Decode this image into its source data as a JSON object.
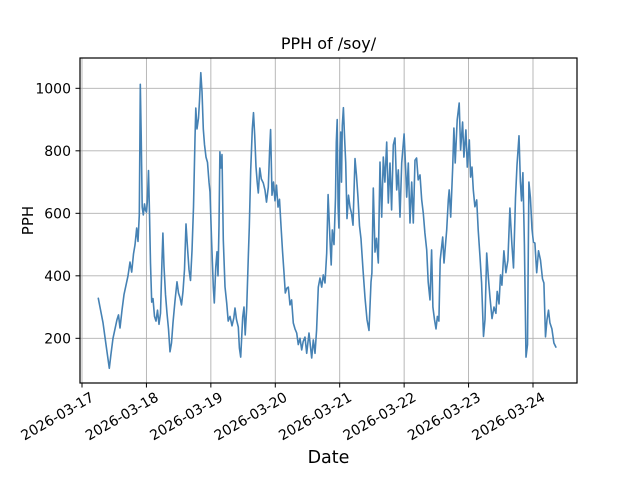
{
  "chart_data": {
    "type": "line",
    "title": "PPH of /soy/",
    "xlabel": "Date",
    "ylabel": "PPH",
    "x_tick_labels": [
      "2026-03-17",
      "2026-03-18",
      "2026-03-19",
      "2026-03-20",
      "2026-03-21",
      "2026-03-22",
      "2026-03-23",
      "2026-03-24"
    ],
    "y_tick_labels": [
      200,
      400,
      600,
      800,
      1000
    ],
    "ylim": [
      57,
      1097
    ],
    "xlim_days": [
      -0.031,
      7.683
    ],
    "x_unit": "days since 2026-03-17 00:00",
    "grid": true,
    "legend": "none",
    "line_color": "#4682b4",
    "grid_color": "#b0b0b0",
    "points": [
      [
        0.253,
        328
      ],
      [
        0.279,
        300
      ],
      [
        0.326,
        250
      ],
      [
        0.372,
        180
      ],
      [
        0.424,
        104
      ],
      [
        0.45,
        150
      ],
      [
        0.481,
        200
      ],
      [
        0.512,
        230
      ],
      [
        0.543,
        260
      ],
      [
        0.566,
        275
      ],
      [
        0.59,
        233
      ],
      [
        0.621,
        290
      ],
      [
        0.652,
        340
      ],
      [
        0.683,
        370
      ],
      [
        0.714,
        400
      ],
      [
        0.745,
        444
      ],
      [
        0.771,
        412
      ],
      [
        0.799,
        470
      ],
      [
        0.823,
        499
      ],
      [
        0.849,
        553
      ],
      [
        0.869,
        510
      ],
      [
        0.889,
        595
      ],
      [
        0.897,
        800
      ],
      [
        0.905,
        1013
      ],
      [
        0.919,
        850
      ],
      [
        0.934,
        620
      ],
      [
        0.951,
        595
      ],
      [
        0.97,
        630
      ],
      [
        0.986,
        610
      ],
      [
        1.001,
        604
      ],
      [
        1.014,
        636
      ],
      [
        1.032,
        737
      ],
      [
        1.048,
        600
      ],
      [
        1.063,
        440
      ],
      [
        1.082,
        316
      ],
      [
        1.102,
        327
      ],
      [
        1.125,
        270
      ],
      [
        1.148,
        255
      ],
      [
        1.172,
        290
      ],
      [
        1.195,
        245
      ],
      [
        1.218,
        280
      ],
      [
        1.242,
        450
      ],
      [
        1.256,
        537
      ],
      [
        1.273,
        430
      ],
      [
        1.296,
        340
      ],
      [
        1.319,
        280
      ],
      [
        1.342,
        230
      ],
      [
        1.366,
        157
      ],
      [
        1.389,
        185
      ],
      [
        1.412,
        250
      ],
      [
        1.443,
        320
      ],
      [
        1.474,
        381
      ],
      [
        1.498,
        345
      ],
      [
        1.521,
        330
      ],
      [
        1.544,
        307
      ],
      [
        1.567,
        350
      ],
      [
        1.591,
        420
      ],
      [
        1.614,
        566
      ],
      [
        1.637,
        490
      ],
      [
        1.661,
        420
      ],
      [
        1.684,
        385
      ],
      [
        1.707,
        480
      ],
      [
        1.731,
        620
      ],
      [
        1.754,
        840
      ],
      [
        1.766,
        937
      ],
      [
        1.785,
        870
      ],
      [
        1.808,
        905
      ],
      [
        1.824,
        960
      ],
      [
        1.844,
        1050
      ],
      [
        1.862,
        990
      ],
      [
        1.883,
        870
      ],
      [
        1.901,
        820
      ],
      [
        1.925,
        780
      ],
      [
        1.948,
        763
      ],
      [
        1.971,
        700
      ],
      [
        1.987,
        668
      ],
      [
        2.01,
        520
      ],
      [
        2.038,
        365
      ],
      [
        2.054,
        313
      ],
      [
        2.077,
        430
      ],
      [
        2.095,
        477
      ],
      [
        2.111,
        400
      ],
      [
        2.126,
        560
      ],
      [
        2.14,
        797
      ],
      [
        2.157,
        745
      ],
      [
        2.173,
        788
      ],
      [
        2.193,
        515
      ],
      [
        2.219,
        365
      ],
      [
        2.246,
        313
      ],
      [
        2.269,
        255
      ],
      [
        2.297,
        270
      ],
      [
        2.328,
        240
      ],
      [
        2.356,
        265
      ],
      [
        2.374,
        297
      ],
      [
        2.398,
        260
      ],
      [
        2.426,
        236
      ],
      [
        2.443,
        169
      ],
      [
        2.463,
        140
      ],
      [
        2.494,
        268
      ],
      [
        2.514,
        300
      ],
      [
        2.533,
        211
      ],
      [
        2.556,
        297
      ],
      [
        2.581,
        460
      ],
      [
        2.597,
        556
      ],
      [
        2.618,
        738
      ],
      [
        2.643,
        870
      ],
      [
        2.662,
        922
      ],
      [
        2.68,
        850
      ],
      [
        2.701,
        749
      ],
      [
        2.719,
        700
      ],
      [
        2.736,
        665
      ],
      [
        2.76,
        745
      ],
      [
        2.783,
        710
      ],
      [
        2.814,
        697
      ],
      [
        2.84,
        674
      ],
      [
        2.863,
        636
      ],
      [
        2.891,
        684
      ],
      [
        2.912,
        800
      ],
      [
        2.928,
        868
      ],
      [
        2.949,
        658
      ],
      [
        2.972,
        700
      ],
      [
        2.995,
        640
      ],
      [
        3.019,
        690
      ],
      [
        3.042,
        620
      ],
      [
        3.065,
        645
      ],
      [
        3.088,
        560
      ],
      [
        3.112,
        480
      ],
      [
        3.135,
        410
      ],
      [
        3.155,
        345
      ],
      [
        3.178,
        360
      ],
      [
        3.202,
        364
      ],
      [
        3.228,
        307
      ],
      [
        3.254,
        323
      ],
      [
        3.279,
        249
      ],
      [
        3.306,
        230
      ],
      [
        3.332,
        217
      ],
      [
        3.357,
        180
      ],
      [
        3.383,
        200
      ],
      [
        3.41,
        163
      ],
      [
        3.434,
        190
      ],
      [
        3.461,
        204
      ],
      [
        3.487,
        152
      ],
      [
        3.523,
        217
      ],
      [
        3.565,
        137
      ],
      [
        3.59,
        195
      ],
      [
        3.616,
        152
      ],
      [
        3.642,
        227
      ],
      [
        3.668,
        364
      ],
      [
        3.694,
        393
      ],
      [
        3.72,
        364
      ],
      [
        3.745,
        403
      ],
      [
        3.772,
        377
      ],
      [
        3.798,
        473
      ],
      [
        3.82,
        660
      ],
      [
        3.849,
        515
      ],
      [
        3.868,
        435
      ],
      [
        3.885,
        547
      ],
      [
        3.911,
        500
      ],
      [
        3.934,
        650
      ],
      [
        3.947,
        827
      ],
      [
        3.961,
        900
      ],
      [
        3.975,
        620
      ],
      [
        3.987,
        553
      ],
      [
        4.003,
        800
      ],
      [
        4.015,
        860
      ],
      [
        4.028,
        700
      ],
      [
        4.04,
        880
      ],
      [
        4.057,
        938
      ],
      [
        4.076,
        840
      ],
      [
        4.093,
        763
      ],
      [
        4.113,
        583
      ],
      [
        4.136,
        658
      ],
      [
        4.16,
        620
      ],
      [
        4.183,
        600
      ],
      [
        4.206,
        562
      ],
      [
        4.237,
        775
      ],
      [
        4.26,
        720
      ],
      [
        4.284,
        650
      ],
      [
        4.307,
        560
      ],
      [
        4.33,
        518
      ],
      [
        4.361,
        420
      ],
      [
        4.392,
        330
      ],
      [
        4.423,
        260
      ],
      [
        4.454,
        225
      ],
      [
        4.485,
        380
      ],
      [
        4.499,
        409
      ],
      [
        4.521,
        681
      ],
      [
        4.547,
        476
      ],
      [
        4.571,
        520
      ],
      [
        4.599,
        441
      ],
      [
        4.625,
        764
      ],
      [
        4.651,
        588
      ],
      [
        4.676,
        780
      ],
      [
        4.702,
        700
      ],
      [
        4.729,
        828
      ],
      [
        4.754,
        633
      ],
      [
        4.78,
        761
      ],
      [
        4.806,
        611
      ],
      [
        4.831,
        819
      ],
      [
        4.858,
        841
      ],
      [
        4.884,
        675
      ],
      [
        4.909,
        739
      ],
      [
        4.935,
        588
      ],
      [
        4.962,
        761
      ],
      [
        4.999,
        854
      ],
      [
        5.024,
        739
      ],
      [
        5.039,
        652
      ],
      [
        5.064,
        761
      ],
      [
        5.091,
        569
      ],
      [
        5.117,
        700
      ],
      [
        5.142,
        569
      ],
      [
        5.168,
        770
      ],
      [
        5.194,
        777
      ],
      [
        5.219,
        707
      ],
      [
        5.246,
        723
      ],
      [
        5.272,
        643
      ],
      [
        5.297,
        600
      ],
      [
        5.323,
        537
      ],
      [
        5.35,
        483
      ],
      [
        5.374,
        380
      ],
      [
        5.401,
        323
      ],
      [
        5.427,
        483
      ],
      [
        5.447,
        300
      ],
      [
        5.471,
        260
      ],
      [
        5.494,
        230
      ],
      [
        5.517,
        270
      ],
      [
        5.54,
        255
      ],
      [
        5.559,
        451
      ],
      [
        5.598,
        524
      ],
      [
        5.618,
        441
      ],
      [
        5.66,
        547
      ],
      [
        5.685,
        643
      ],
      [
        5.7,
        675
      ],
      [
        5.722,
        588
      ],
      [
        5.753,
        748
      ],
      [
        5.773,
        873
      ],
      [
        5.793,
        761
      ],
      [
        5.824,
        899
      ],
      [
        5.855,
        953
      ],
      [
        5.877,
        803
      ],
      [
        5.908,
        892
      ],
      [
        5.928,
        780
      ],
      [
        5.959,
        867
      ],
      [
        5.98,
        748
      ],
      [
        6.011,
        835
      ],
      [
        6.032,
        716
      ],
      [
        6.053,
        748
      ],
      [
        6.073,
        675
      ],
      [
        6.099,
        621
      ],
      [
        6.126,
        643
      ],
      [
        6.15,
        547
      ],
      [
        6.177,
        461
      ],
      [
        6.203,
        377
      ],
      [
        6.231,
        206
      ],
      [
        6.255,
        260
      ],
      [
        6.281,
        473
      ],
      [
        6.306,
        397
      ],
      [
        6.332,
        330
      ],
      [
        6.363,
        263
      ],
      [
        6.394,
        300
      ],
      [
        6.425,
        280
      ],
      [
        6.445,
        350
      ],
      [
        6.472,
        310
      ],
      [
        6.495,
        403
      ],
      [
        6.518,
        370
      ],
      [
        6.549,
        480
      ],
      [
        6.58,
        410
      ],
      [
        6.611,
        450
      ],
      [
        6.642,
        617
      ],
      [
        6.673,
        500
      ],
      [
        6.697,
        425
      ],
      [
        6.728,
        650
      ],
      [
        6.751,
        754
      ],
      [
        6.782,
        848
      ],
      [
        6.805,
        700
      ],
      [
        6.821,
        640
      ],
      [
        6.844,
        730
      ],
      [
        6.867,
        500
      ],
      [
        6.891,
        140
      ],
      [
        6.914,
        180
      ],
      [
        6.937,
        700
      ],
      [
        6.96,
        650
      ],
      [
        6.984,
        550
      ],
      [
        7.007,
        508
      ],
      [
        7.03,
        505
      ],
      [
        7.057,
        410
      ],
      [
        7.085,
        480
      ],
      [
        7.116,
        450
      ],
      [
        7.147,
        390
      ],
      [
        7.17,
        377
      ],
      [
        7.194,
        205
      ],
      [
        7.217,
        260
      ],
      [
        7.24,
        290
      ],
      [
        7.263,
        250
      ],
      [
        7.294,
        230
      ],
      [
        7.325,
        185
      ],
      [
        7.356,
        172
      ]
    ]
  }
}
